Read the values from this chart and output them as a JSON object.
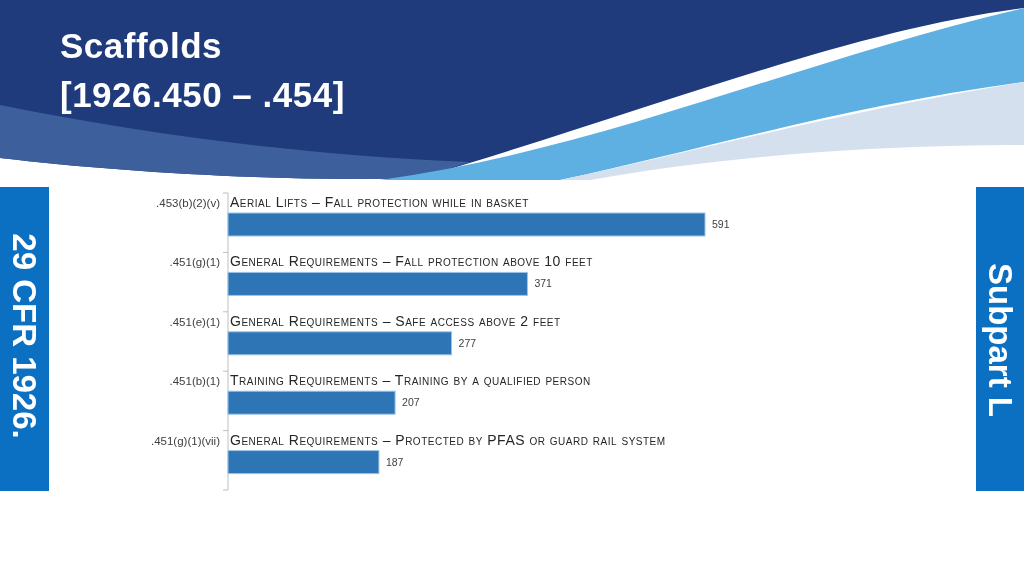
{
  "chart_data": {
    "type": "bar",
    "orientation": "horizontal",
    "title": "Scaffolds",
    "subtitle": "[1926.450 – .454]",
    "categories": [
      ".453(b)(2)(v)",
      ".451(g)(1)",
      ".451(e)(1)",
      ".451(b)(1)",
      ".451(g)(1)(vii)"
    ],
    "values": [
      591,
      371,
      277,
      207,
      187
    ],
    "color": "#2e75b6",
    "data_labels": true,
    "annotations": [
      "Aerial Lifts – Fall protection while in basket",
      "General Requirements – Fall protection above 10 feet",
      "General Requirements – Safe access above 2 feet",
      "Training Requirements – Training by a qualified person",
      "General Requirements – Protected by PFAS or guard rail system",
      "29 CFR 1926.",
      "Subpart L"
    ]
  }
}
